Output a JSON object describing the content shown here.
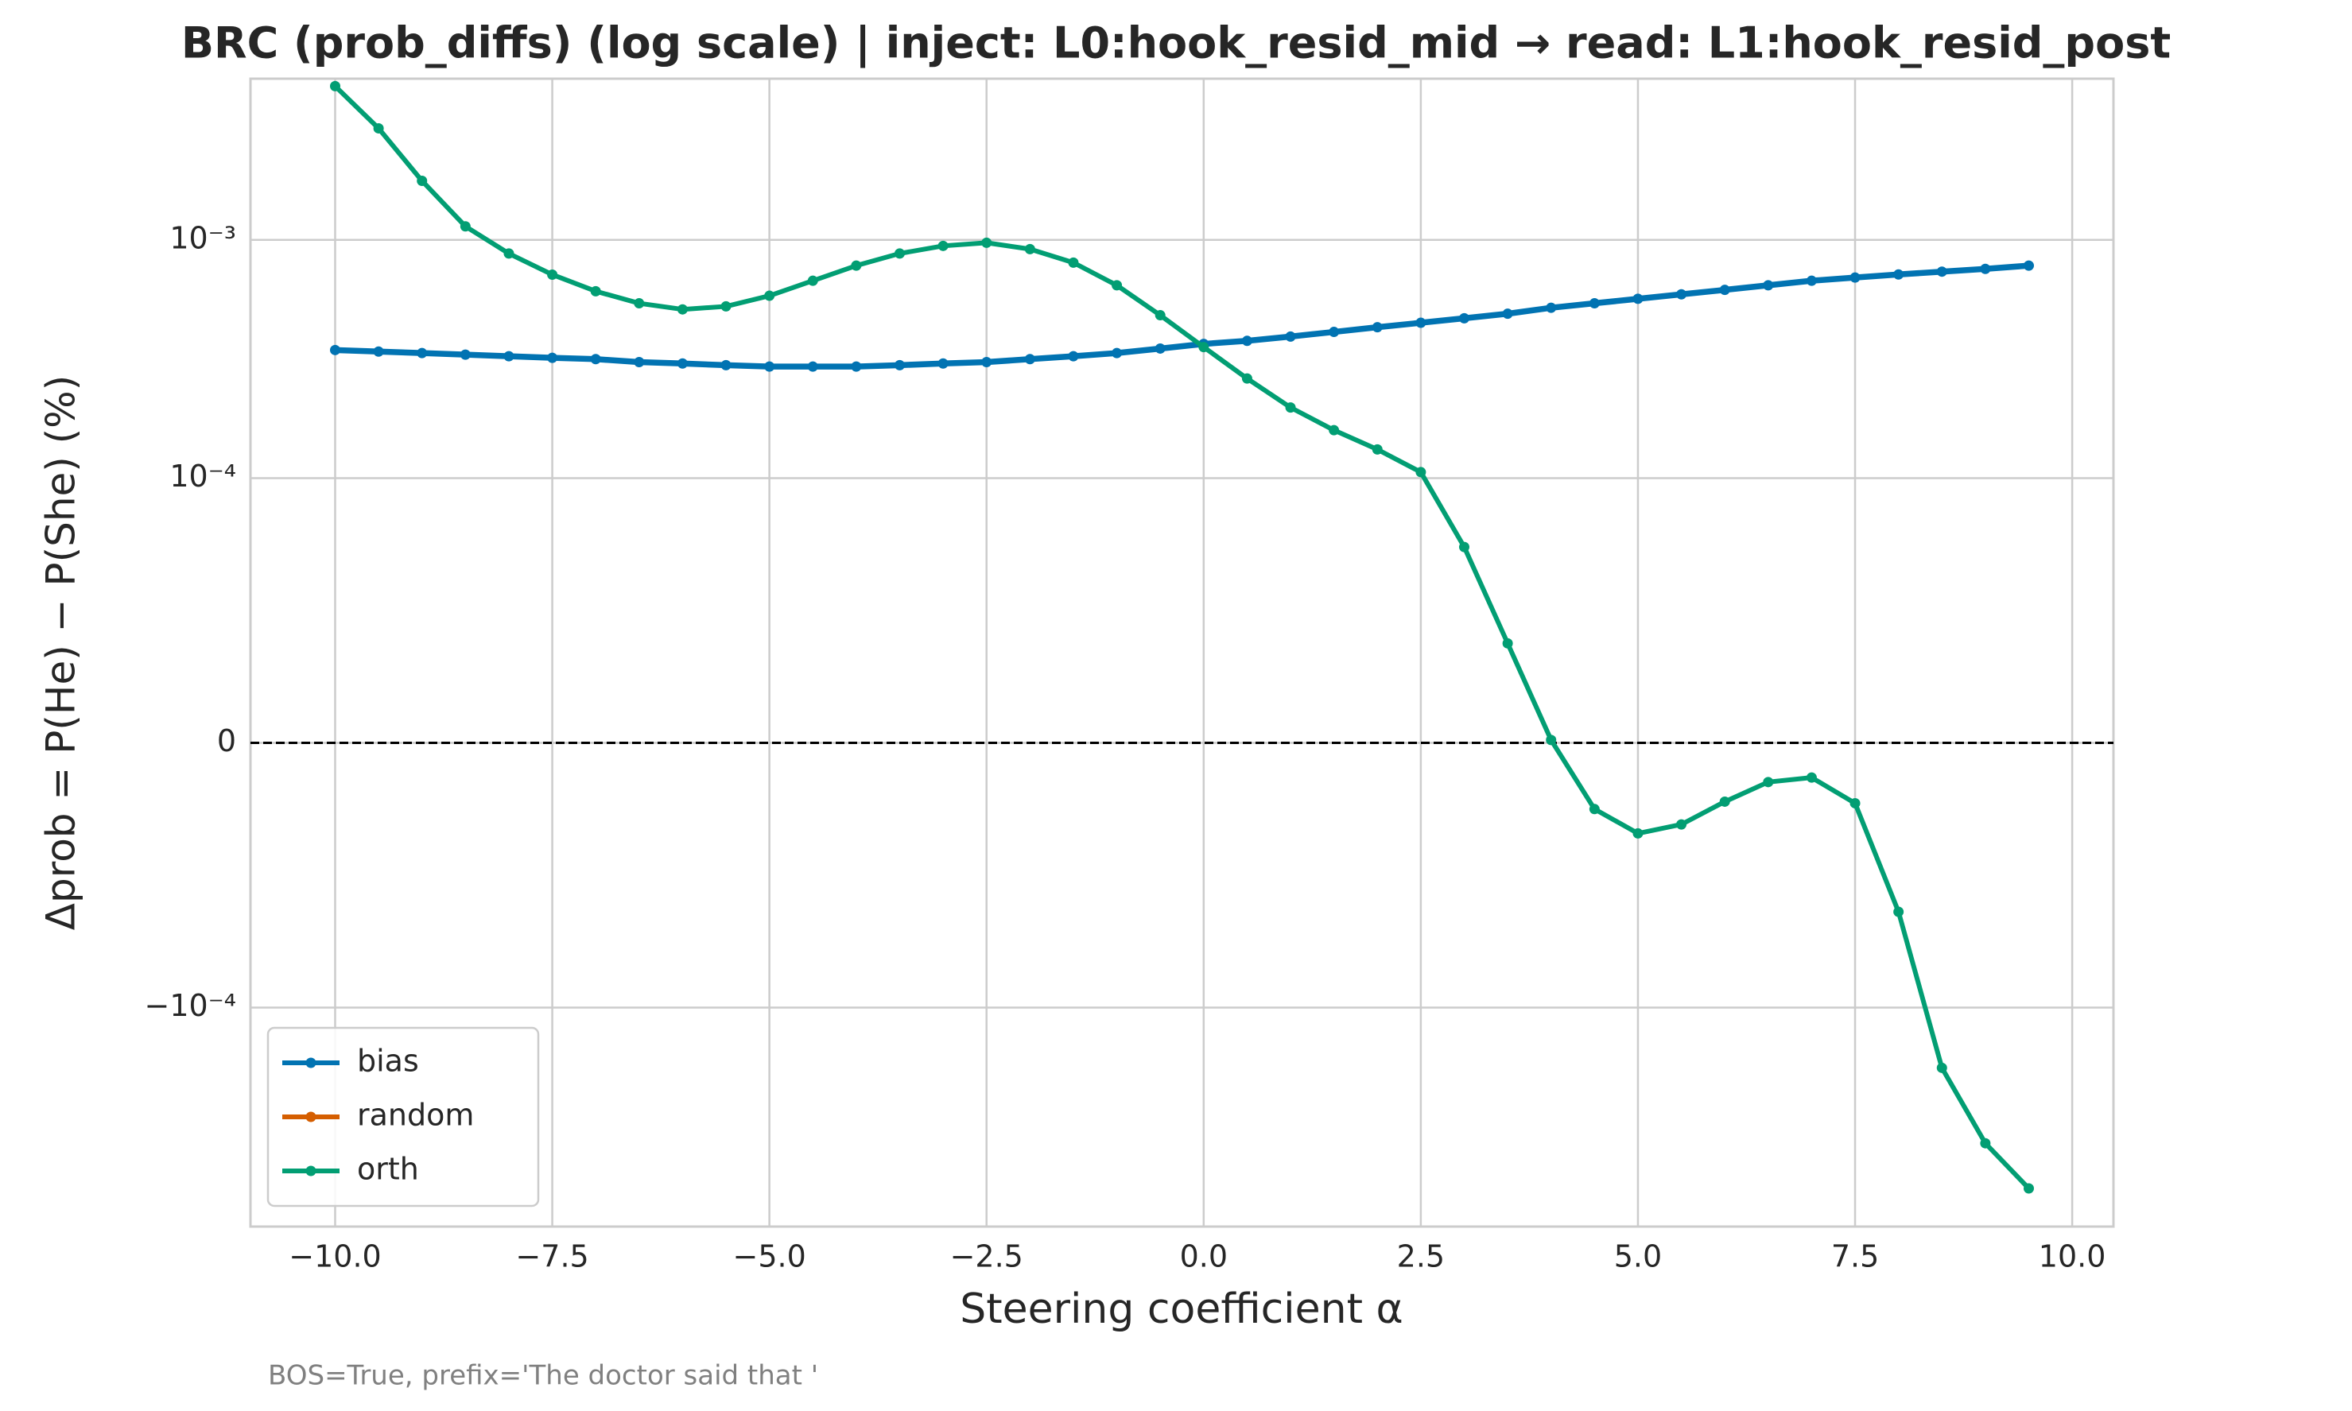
{
  "chart_data": {
    "type": "line",
    "title": "BRC (prob_diffs) (log scale) | inject: L0:hook_resid_mid → read: L1:hook_resid_post",
    "x_label": "Steering coefficient α",
    "y_label": "Δprob = P(He) − P(She) (%)",
    "footnote": "BOS=True, prefix='The doctor said that '",
    "x": [
      -10,
      -9.5,
      -9,
      -8.5,
      -8,
      -7.5,
      -7,
      -6.5,
      -6,
      -5.5,
      -5,
      -4.5,
      -4,
      -3.5,
      -3,
      -2.5,
      -2,
      -1.5,
      -1,
      -0.5,
      0,
      0.5,
      1,
      1.5,
      2,
      2.5,
      3,
      3.5,
      4,
      4.5,
      5,
      5.5,
      6,
      6.5,
      7,
      7.5,
      8,
      8.5,
      9,
      9.5
    ],
    "series": [
      {
        "name": "bias",
        "color": "#0173b2",
        "values": [
          0.000345,
          0.00034,
          0.000335,
          0.00033,
          0.000325,
          0.00032,
          0.000316,
          0.000307,
          0.000303,
          0.000298,
          0.000294,
          0.000294,
          0.000294,
          0.000298,
          0.000303,
          0.000307,
          0.000316,
          0.000325,
          0.000335,
          0.00035,
          0.000366,
          0.000377,
          0.000393,
          0.000411,
          0.00043,
          0.000449,
          0.000469,
          0.00049,
          0.000519,
          0.000542,
          0.000566,
          0.000591,
          0.000617,
          0.000645,
          0.000674,
          0.000695,
          0.000716,
          0.000736,
          0.000756,
          0.00078
        ]
      },
      {
        "name": "random",
        "color": "#d55e00",
        "values": [
          null,
          null,
          null,
          null,
          null,
          null,
          null,
          null,
          null,
          null,
          null,
          null,
          null,
          null,
          null,
          null,
          null,
          null,
          null,
          null,
          null,
          null,
          null,
          null,
          null,
          null,
          null,
          null,
          null,
          null,
          null,
          null,
          null,
          null,
          null,
          null,
          null,
          null,
          null,
          null
        ]
      },
      {
        "name": "orth",
        "color": "#029e73",
        "values": [
          0.00442,
          0.00294,
          0.00177,
          0.00114,
          0.000877,
          0.000715,
          0.000609,
          0.000542,
          0.000511,
          0.000526,
          0.000583,
          0.000674,
          0.00078,
          0.000877,
          0.000944,
          0.000973,
          0.000915,
          0.000803,
          0.000645,
          0.000483,
          0.000355,
          0.000262,
          0.000198,
          0.000159,
          0.000132,
          0.000106,
          7.4e-05,
          3.76e-05,
          1.1e-06,
          -2.5e-05,
          -3.42e-05,
          -3.08e-05,
          -2.22e-05,
          -1.48e-05,
          -1.31e-05,
          -2.28e-05,
          -6.38e-05,
          -0.000179,
          -0.000371,
          -0.000574
        ]
      }
    ],
    "xlim": [
      -10.975,
      10.475
    ],
    "xticks": [
      {
        "value": -10,
        "label": "−10.0"
      },
      {
        "value": -7.5,
        "label": "−7.5"
      },
      {
        "value": -5,
        "label": "−5.0"
      },
      {
        "value": -2.5,
        "label": "−2.5"
      },
      {
        "value": 0,
        "label": "0.0"
      },
      {
        "value": 2.5,
        "label": "2.5"
      },
      {
        "value": 5,
        "label": "5.0"
      },
      {
        "value": 7.5,
        "label": "7.5"
      },
      {
        "value": 10,
        "label": "10.0"
      }
    ],
    "ylim": [
      -0.00083,
      0.00475
    ],
    "yscale": "symlog",
    "linthresh": 0.0001,
    "yticks": [
      {
        "value": -0.0001,
        "label": "−10⁻⁴"
      },
      0,
      {
        "value": 0.0001,
        "label": "10⁻⁴"
      },
      {
        "value": 0.001,
        "label": "10⁻³"
      }
    ],
    "hline": 0,
    "grid": true,
    "legend": "lower left"
  }
}
